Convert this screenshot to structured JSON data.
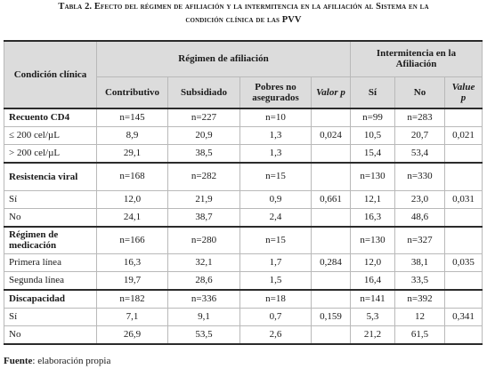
{
  "caption": {
    "line1": "Tabla 2. Efecto del régimen de afiliación y la intermitencia en la afiliación al Sistema en la",
    "line2": "condición clínica de las PVV"
  },
  "header": {
    "condicion": "Condición clínica",
    "regimen": "Régimen de afiliación",
    "intermitencia": "Intermitencia en la Afiliación",
    "contributivo": "Contributivo",
    "subsidiado": "Subsidiado",
    "pobres": "Pobres no asegurados",
    "valor_p": "Valor p",
    "si": "Sí",
    "no": "No",
    "value_p": "Value p"
  },
  "rows": [
    {
      "label": "Recuento CD4",
      "contrib": "n=145",
      "subsid": "n=227",
      "pobres": "n=10",
      "pval": "",
      "si": "n=99",
      "no": "n=283",
      "pval2": ""
    },
    {
      "label": "≤ 200 cel/µL",
      "contrib": "8,9",
      "subsid": "20,9",
      "pobres": "1,3",
      "pval": "0,024",
      "si": "10,5",
      "no": "20,7",
      "pval2": "0,021"
    },
    {
      "label": "> 200 cel/µL",
      "contrib": "29,1",
      "subsid": "38,5",
      "pobres": "1,3",
      "pval": "",
      "si": "15,4",
      "no": "53,4",
      "pval2": ""
    },
    {
      "label": "Resistencia viral",
      "contrib": "n=168",
      "subsid": "n=282",
      "pobres": "n=15",
      "pval": "",
      "si": "n=130",
      "no": "n=330",
      "pval2": ""
    },
    {
      "label": "Sí",
      "contrib": "12,0",
      "subsid": "21,9",
      "pobres": "0,9",
      "pval": "0,661",
      "si": "12,1",
      "no": "23,0",
      "pval2": "0,031"
    },
    {
      "label": "No",
      "contrib": "24,1",
      "subsid": "38,7",
      "pobres": "2,4",
      "pval": "",
      "si": "16,3",
      "no": "48,6",
      "pval2": ""
    },
    {
      "label": "Régimen de medicación",
      "contrib": "n=166",
      "subsid": "n=280",
      "pobres": "n=15",
      "pval": "",
      "si": "n=130",
      "no": "n=327",
      "pval2": ""
    },
    {
      "label": "Primera línea",
      "contrib": "16,3",
      "subsid": "32,1",
      "pobres": "1,7",
      "pval": "0,284",
      "si": "12,0",
      "no": "38,1",
      "pval2": "0,035"
    },
    {
      "label": "Segunda línea",
      "contrib": "19,7",
      "subsid": "28,6",
      "pobres": "1,5",
      "pval": "",
      "si": "16,4",
      "no": "33,5",
      "pval2": ""
    },
    {
      "label": "Discapacidad",
      "contrib": "n=182",
      "subsid": "n=336",
      "pobres": "n=18",
      "pval": "",
      "si": "n=141",
      "no": "n=392",
      "pval2": ""
    },
    {
      "label": "Sí",
      "contrib": "7,1",
      "subsid": "9,1",
      "pobres": "0,7",
      "pval": "0,159",
      "si": "5,3",
      "no": "12",
      "pval2": "0,341"
    },
    {
      "label": "No",
      "contrib": "26,9",
      "subsid": "53,5",
      "pobres": "2,6",
      "pval": "",
      "si": "21,2",
      "no": "61,5",
      "pval2": ""
    }
  ],
  "footer": {
    "label": "Fuente",
    "text": ": elaboración propia"
  }
}
